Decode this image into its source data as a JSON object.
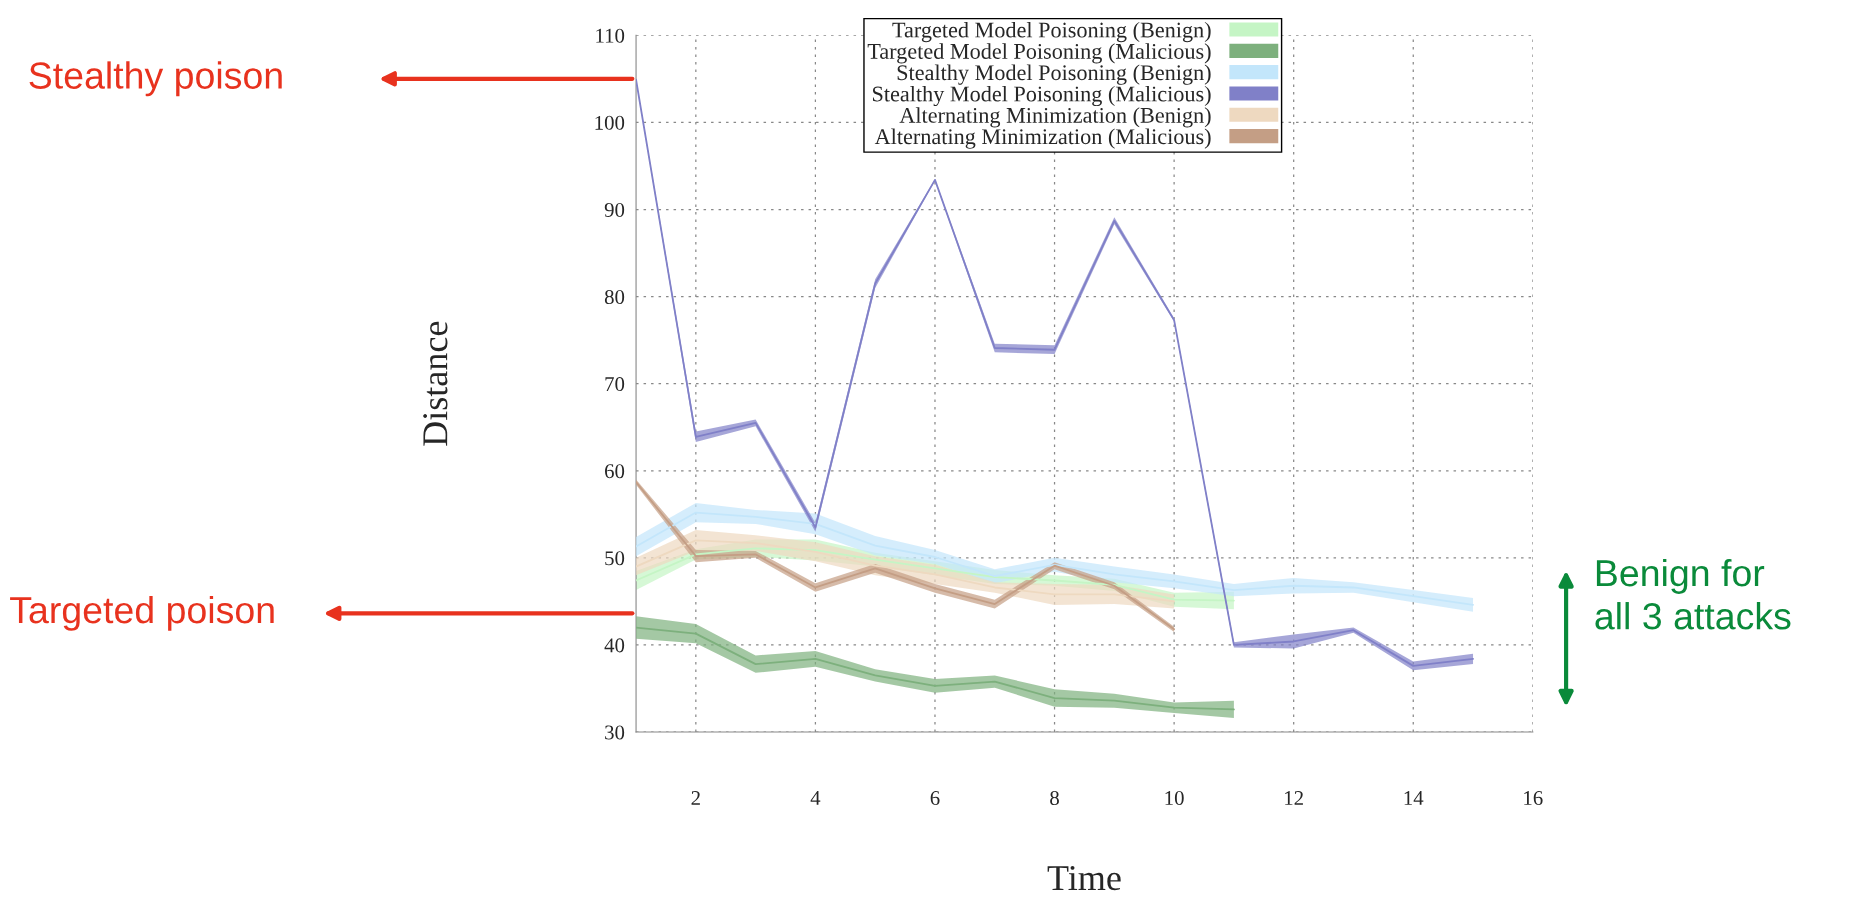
{
  "chart_data": {
    "type": "line",
    "xlabel": "Time",
    "ylabel": "Distance",
    "xlim": [
      1,
      16
    ],
    "xticks": [
      2,
      4,
      6,
      8,
      10,
      12,
      14,
      16
    ],
    "ylim": [
      30,
      110
    ],
    "yticks": [
      30,
      40,
      50,
      60,
      70,
      80,
      90,
      100,
      110
    ],
    "grid": true,
    "legend": "top",
    "series": [
      {
        "name": "Targeted Model Poisoning (Benign)",
        "color": "#c5f5c5",
        "x": [
          1,
          2,
          3,
          4,
          5,
          6,
          7,
          8,
          9,
          10,
          11
        ],
        "values": [
          47.4,
          50.4,
          51.1,
          50.9,
          49.8,
          48.8,
          47.8,
          47.4,
          46.9,
          45.2,
          45.1
        ],
        "lower": [
          46.3,
          49.8,
          50.1,
          49.7,
          49.0,
          48.0,
          47.0,
          46.8,
          46.2,
          44.4,
          44.1
        ],
        "upper": [
          48.5,
          51.0,
          52.1,
          52.1,
          50.6,
          49.6,
          48.6,
          48.0,
          47.6,
          46.0,
          46.1
        ]
      },
      {
        "name": "Targeted Model Poisoning (Malicious)",
        "color": "#7db07d",
        "x": [
          1,
          2,
          3,
          4,
          5,
          6,
          7,
          8,
          9,
          10,
          11
        ],
        "values": [
          42.0,
          41.3,
          37.8,
          38.4,
          36.5,
          35.3,
          35.8,
          33.9,
          33.6,
          32.8,
          32.6
        ],
        "lower": [
          40.7,
          40.2,
          36.8,
          37.5,
          35.8,
          34.5,
          35.1,
          32.9,
          32.8,
          32.2,
          31.6
        ],
        "upper": [
          43.3,
          42.4,
          38.8,
          39.3,
          37.2,
          36.1,
          36.5,
          34.9,
          34.4,
          33.4,
          33.6
        ]
      },
      {
        "name": "Stealthy Model Poisoning (Benign)",
        "color": "#c3e6fb",
        "x": [
          1,
          2,
          3,
          4,
          5,
          6,
          7,
          8,
          9,
          10,
          11,
          12,
          13,
          14,
          15
        ],
        "values": [
          51.3,
          55.2,
          54.7,
          53.9,
          51.4,
          50.1,
          47.9,
          49.2,
          48.1,
          47.3,
          46.3,
          46.8,
          46.6,
          45.6,
          44.6
        ],
        "lower": [
          50.2,
          54.1,
          53.9,
          52.7,
          50.3,
          49.3,
          47.1,
          48.4,
          47.2,
          46.5,
          45.6,
          45.9,
          46.0,
          44.9,
          43.8
        ],
        "upper": [
          52.4,
          56.3,
          55.5,
          55.1,
          52.5,
          50.9,
          48.7,
          50.0,
          49.0,
          48.1,
          47.0,
          47.7,
          47.2,
          46.3,
          45.4
        ]
      },
      {
        "name": "Stealthy Model Poisoning (Malicious)",
        "color": "#8080c8",
        "x": [
          1,
          2,
          3,
          4,
          5,
          6,
          7,
          8,
          9,
          10,
          11,
          12,
          13,
          14,
          15
        ],
        "values": [
          104.9,
          63.9,
          65.5,
          53.5,
          81.5,
          93.4,
          74.1,
          73.9,
          88.7,
          77.3,
          40.0,
          40.4,
          41.7,
          37.6,
          38.4
        ],
        "lower": [
          104.8,
          63.3,
          65.1,
          53.0,
          81.0,
          93.3,
          73.6,
          73.4,
          88.3,
          77.1,
          39.7,
          39.6,
          41.4,
          37.1,
          37.8
        ],
        "upper": [
          105.0,
          64.5,
          65.9,
          54.0,
          82.0,
          93.5,
          74.6,
          74.4,
          89.1,
          77.5,
          40.3,
          41.2,
          42.0,
          38.1,
          39.0
        ]
      },
      {
        "name": "Alternating Minimization (Benign)",
        "color": "#eed9c0",
        "x": [
          1,
          2,
          3,
          4,
          5,
          6,
          7,
          8,
          9,
          10
        ],
        "values": [
          49.0,
          52.0,
          51.7,
          50.7,
          49.1,
          48.1,
          46.6,
          45.8,
          45.8,
          45.0
        ],
        "lower": [
          48.0,
          50.8,
          50.8,
          49.6,
          48.0,
          47.0,
          46.0,
          44.6,
          44.7,
          44.2
        ],
        "upper": [
          50.0,
          53.2,
          52.6,
          51.8,
          50.2,
          49.2,
          47.2,
          47.0,
          46.9,
          45.8
        ]
      },
      {
        "name": "Alternating Minimization (Malicious)",
        "color": "#c49e85",
        "x": [
          1,
          2,
          3,
          4,
          5,
          6,
          7,
          8,
          9,
          10
        ],
        "values": [
          58.7,
          50.2,
          50.4,
          46.6,
          48.8,
          46.5,
          44.7,
          49.1,
          46.8,
          41.8
        ],
        "lower": [
          58.4,
          49.5,
          50.0,
          46.1,
          48.3,
          46.0,
          44.2,
          48.7,
          46.4,
          41.5
        ],
        "upper": [
          59.0,
          50.9,
          50.8,
          47.1,
          49.3,
          47.0,
          45.2,
          49.5,
          47.2,
          42.1
        ]
      }
    ],
    "annotations": [
      "Stealthy poison",
      "Targeted poison",
      "Benign for\nall 3 attacks"
    ]
  }
}
